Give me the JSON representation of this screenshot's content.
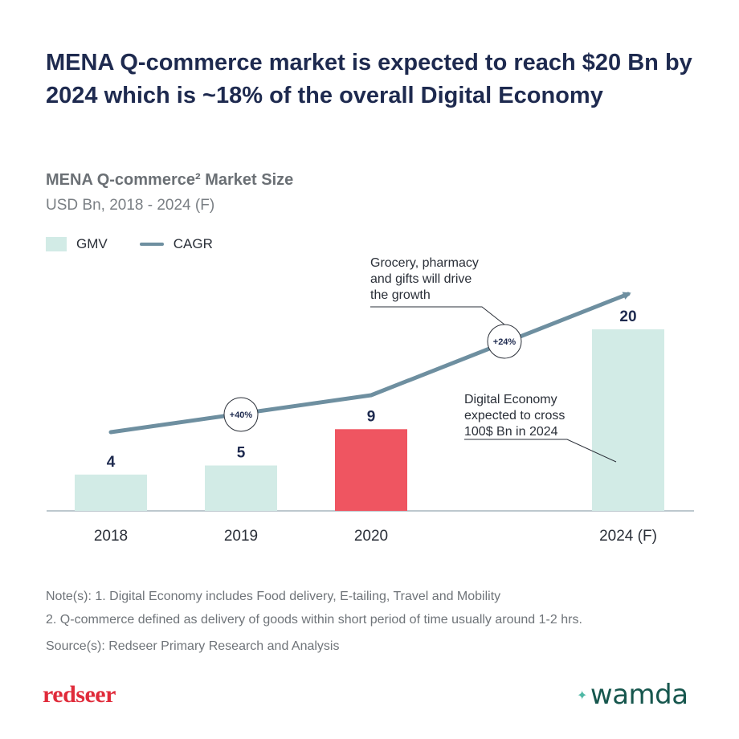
{
  "headline": "MENA Q-commerce market is expected to reach $20 Bn by 2024 which is ~18% of the overall Digital Economy",
  "subtitle": "MENA Q-commerce² Market Size",
  "subtitle_units": "USD Bn, 2018 - 2024 (F)",
  "legend": {
    "gmv": "GMV",
    "cagr": "CAGR"
  },
  "colors": {
    "bar": "#d2ebe6",
    "highlight_bar": "#ef5561",
    "cagr_line": "#6e8fa0",
    "title": "#1e2a4f"
  },
  "chart_data": {
    "type": "bar",
    "categories": [
      "2018",
      "2019",
      "2020",
      "2024 (F)"
    ],
    "series": [
      {
        "name": "GMV",
        "values": [
          4,
          5,
          9,
          20
        ],
        "highlight_index": 2
      },
      {
        "name": "CAGR",
        "type": "line",
        "labels": [
          "+40%",
          "+24%"
        ]
      }
    ],
    "ylabel": "USD Bn",
    "annotations": [
      "Grocery, pharmacy and gifts will drive the growth",
      "Digital Economy expected to cross 100$ Bn in 2024"
    ]
  },
  "notes": {
    "line1": "Note(s): 1. Digital Economy includes Food delivery, E-tailing, Travel and Mobility",
    "line2": "2. Q-commerce defined as delivery of goods within short period of time usually around 1-2 hrs.",
    "source": "Source(s): Redseer Primary Research and Analysis"
  },
  "logos": {
    "left": "redseer",
    "right": "wamda"
  }
}
